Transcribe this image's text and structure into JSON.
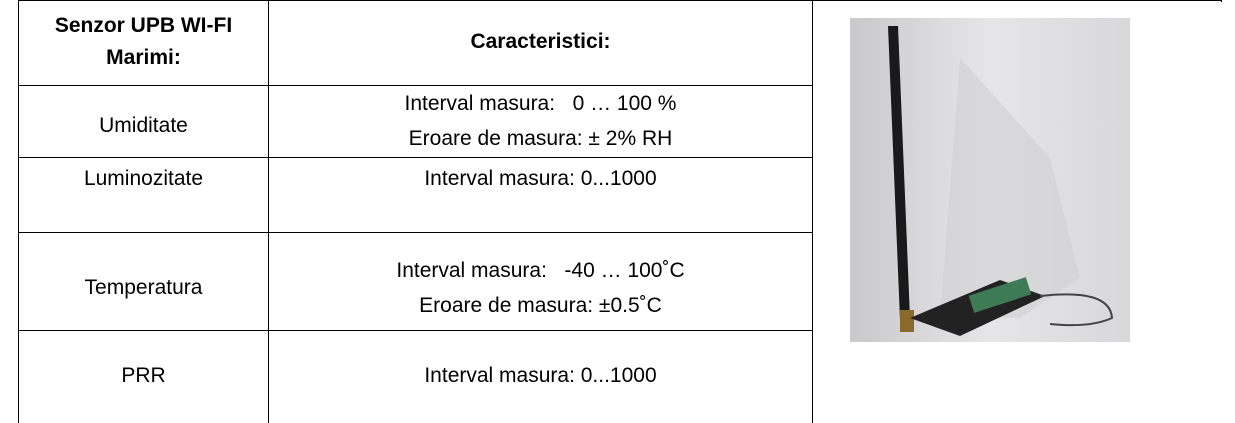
{
  "table": {
    "header": [
      [
        "Senzor UPB WI-FI",
        "Marimi:"
      ],
      "Caracteristici:"
    ],
    "rows": [
      {
        "label": "Umiditate",
        "lines": [
          "Interval masura:   0 … 100 %",
          "Eroare de masura: ± 2% RH"
        ]
      },
      {
        "label": "Luminozitate",
        "lines": [
          "Interval masura: 0...1000"
        ]
      },
      {
        "label": "Temperatura",
        "lines": [
          "Interval masura:   -40 … 100˚C",
          "Eroare de masura: ±0.5˚C"
        ]
      },
      {
        "label": "PRR",
        "lines": [
          "Interval masura: 0...1000"
        ]
      }
    ]
  }
}
